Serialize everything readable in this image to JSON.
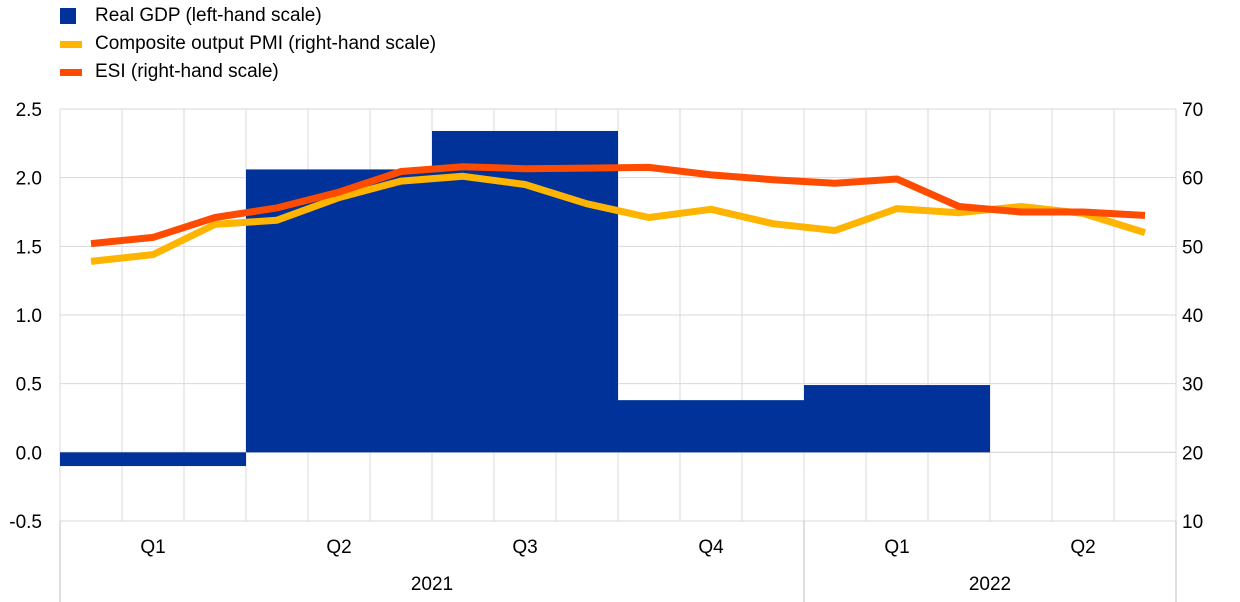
{
  "chart_data": {
    "type": "bar+line",
    "legend": [
      {
        "label": "Real GDP (left-hand scale)",
        "color": "#003299",
        "kind": "bar"
      },
      {
        "label": "Composite output PMI (right-hand scale)",
        "color": "#FFB400",
        "kind": "line"
      },
      {
        "label": "ESI (right-hand scale)",
        "color": "#FF4B00",
        "kind": "line"
      }
    ],
    "left_axis": {
      "ylim": [
        -0.5,
        2.5
      ],
      "ticks": [
        "-0.5",
        "0.0",
        "0.5",
        "1.0",
        "1.5",
        "2.0",
        "2.5"
      ]
    },
    "right_axis": {
      "ylim": [
        10,
        70
      ],
      "ticks": [
        "10",
        "20",
        "30",
        "40",
        "50",
        "60",
        "70"
      ]
    },
    "quarters": [
      "Q1",
      "Q2",
      "Q3",
      "Q4",
      "Q1",
      "Q2"
    ],
    "years": [
      {
        "label": "2021",
        "quarters": 4
      },
      {
        "label": "2022",
        "quarters": 2
      }
    ],
    "bars": {
      "name": "Real GDP (left-hand scale)",
      "categories": [
        "2021 Q1",
        "2021 Q2",
        "2021 Q3",
        "2021 Q4",
        "2022 Q1",
        "2022 Q2"
      ],
      "values": [
        -0.1,
        2.06,
        2.34,
        0.38,
        0.49,
        null
      ]
    },
    "months": [
      "2021-01",
      "2021-02",
      "2021-03",
      "2021-04",
      "2021-05",
      "2021-06",
      "2021-07",
      "2021-08",
      "2021-09",
      "2021-10",
      "2021-11",
      "2021-12",
      "2022-01",
      "2022-02",
      "2022-03",
      "2022-04",
      "2022-05",
      "2022-06"
    ],
    "series": [
      {
        "name": "Composite output PMI (right-hand scale)",
        "values": [
          47.8,
          48.8,
          53.2,
          53.8,
          57.1,
          59.5,
          60.2,
          59.0,
          56.2,
          54.2,
          55.4,
          53.3,
          52.3,
          55.5,
          54.9,
          55.8,
          54.8,
          52.0
        ]
      },
      {
        "name": "ESI (right-hand scale)",
        "values": [
          50.4,
          51.3,
          54.2,
          55.6,
          57.9,
          60.9,
          61.6,
          61.3,
          61.4,
          61.5,
          60.4,
          59.7,
          59.2,
          59.8,
          55.8,
          55.0,
          55.0,
          54.5
        ]
      }
    ],
    "grid": true
  }
}
